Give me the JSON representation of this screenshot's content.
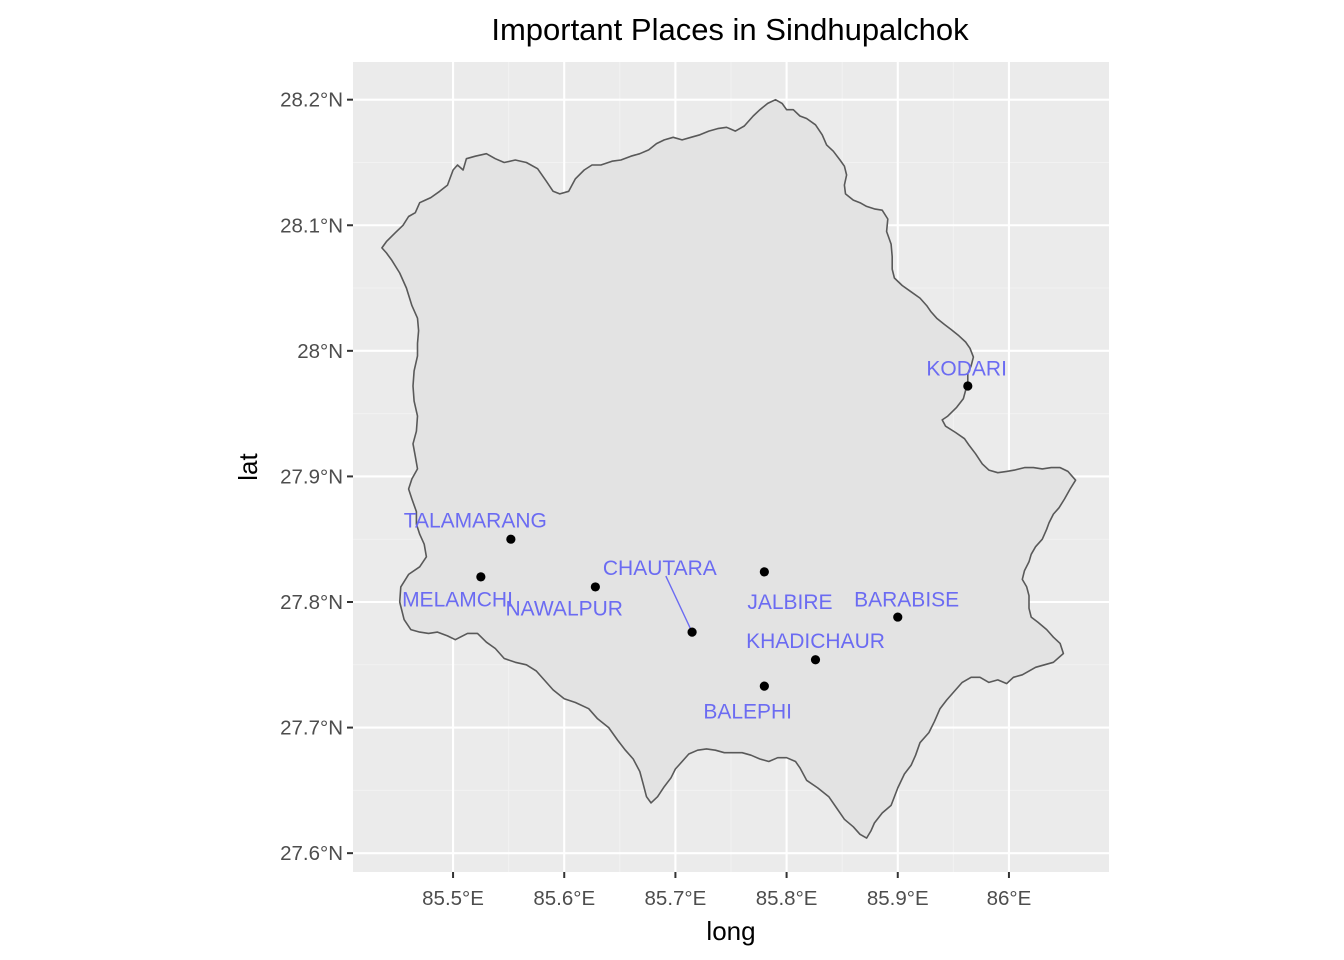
{
  "chart_data": {
    "type": "scatter",
    "title": "Important Places in Sindhupalchok",
    "xlabel": "long",
    "ylabel": "lat",
    "xlim": [
      85.41,
      86.09
    ],
    "ylim": [
      27.585,
      28.23
    ],
    "x_ticks": [
      {
        "value": 85.5,
        "label": "85.5°E"
      },
      {
        "value": 85.6,
        "label": "85.6°E"
      },
      {
        "value": 85.7,
        "label": "85.7°E"
      },
      {
        "value": 85.8,
        "label": "85.8°E"
      },
      {
        "value": 85.9,
        "label": "85.9°E"
      },
      {
        "value": 86.0,
        "label": "86°E"
      }
    ],
    "y_ticks": [
      {
        "value": 27.6,
        "label": "27.6°N"
      },
      {
        "value": 27.7,
        "label": "27.7°N"
      },
      {
        "value": 27.8,
        "label": "27.8°N"
      },
      {
        "value": 27.9,
        "label": "27.9°N"
      },
      {
        "value": 28.0,
        "label": "28°N"
      },
      {
        "value": 28.1,
        "label": "28.1°N"
      },
      {
        "value": 28.2,
        "label": "28.2°N"
      }
    ],
    "points": [
      {
        "name": "KODARI",
        "long": 85.963,
        "lat": 27.972,
        "label_long": 85.962,
        "label_lat": 27.986,
        "leader": false
      },
      {
        "name": "TALAMARANG",
        "long": 85.552,
        "lat": 27.85,
        "label_long": 85.52,
        "label_lat": 27.865,
        "leader": false
      },
      {
        "name": "MELAMCHI",
        "long": 85.525,
        "lat": 27.82,
        "label_long": 85.504,
        "label_lat": 27.802,
        "leader": false
      },
      {
        "name": "NAWALPUR",
        "long": 85.628,
        "lat": 27.812,
        "label_long": 85.6,
        "label_lat": 27.795,
        "leader": false
      },
      {
        "name": "CHAUTARA",
        "long": 85.715,
        "lat": 27.776,
        "label_long": 85.686,
        "label_lat": 27.827,
        "leader": true
      },
      {
        "name": "JALBIRE",
        "long": 85.78,
        "lat": 27.824,
        "label_long": 85.803,
        "label_lat": 27.8,
        "leader": false
      },
      {
        "name": "BARABISE",
        "long": 85.9,
        "lat": 27.788,
        "label_long": 85.908,
        "label_lat": 27.802,
        "leader": false
      },
      {
        "name": "KHADICHAUR",
        "long": 85.826,
        "lat": 27.754,
        "label_long": 85.826,
        "label_lat": 27.769,
        "leader": false
      },
      {
        "name": "BALEPHI",
        "long": 85.78,
        "lat": 27.733,
        "label_long": 85.765,
        "label_lat": 27.713,
        "leader": false
      }
    ],
    "boundary": [
      [
        85.44,
        28.087
      ],
      [
        85.448,
        28.094
      ],
      [
        85.455,
        28.1
      ],
      [
        85.46,
        28.107
      ],
      [
        85.466,
        28.11
      ],
      [
        85.47,
        28.118
      ],
      [
        85.475,
        28.12
      ],
      [
        85.48,
        28.122
      ],
      [
        85.488,
        28.127
      ],
      [
        85.495,
        28.132
      ],
      [
        85.5,
        28.144
      ],
      [
        85.504,
        28.148
      ],
      [
        85.509,
        28.144
      ],
      [
        85.512,
        28.153
      ],
      [
        85.52,
        28.155
      ],
      [
        85.53,
        28.157
      ],
      [
        85.538,
        28.153
      ],
      [
        85.546,
        28.15
      ],
      [
        85.556,
        28.152
      ],
      [
        85.566,
        28.15
      ],
      [
        85.576,
        28.145
      ],
      [
        85.584,
        28.135
      ],
      [
        85.59,
        28.127
      ],
      [
        85.596,
        28.125
      ],
      [
        85.604,
        28.127
      ],
      [
        85.61,
        28.137
      ],
      [
        85.618,
        28.144
      ],
      [
        85.625,
        28.148
      ],
      [
        85.633,
        28.148
      ],
      [
        85.643,
        28.151
      ],
      [
        85.651,
        28.152
      ],
      [
        85.66,
        28.155
      ],
      [
        85.668,
        28.157
      ],
      [
        85.676,
        28.16
      ],
      [
        85.683,
        28.165
      ],
      [
        85.69,
        28.168
      ],
      [
        85.698,
        28.17
      ],
      [
        85.706,
        28.168
      ],
      [
        85.714,
        28.17
      ],
      [
        85.722,
        28.172
      ],
      [
        85.73,
        28.175
      ],
      [
        85.738,
        28.177
      ],
      [
        85.746,
        28.178
      ],
      [
        85.754,
        28.175
      ],
      [
        85.762,
        28.179
      ],
      [
        85.77,
        28.187
      ],
      [
        85.776,
        28.192
      ],
      [
        85.783,
        28.197
      ],
      [
        85.79,
        28.2
      ],
      [
        85.796,
        28.197
      ],
      [
        85.8,
        28.192
      ],
      [
        85.806,
        28.192
      ],
      [
        85.812,
        28.187
      ],
      [
        85.818,
        28.185
      ],
      [
        85.826,
        28.18
      ],
      [
        85.832,
        28.172
      ],
      [
        85.836,
        28.164
      ],
      [
        85.842,
        28.159
      ],
      [
        85.848,
        28.152
      ],
      [
        85.852,
        28.147
      ],
      [
        85.854,
        28.14
      ],
      [
        85.852,
        28.132
      ],
      [
        85.853,
        28.125
      ],
      [
        85.86,
        28.12
      ],
      [
        85.866,
        28.118
      ],
      [
        85.872,
        28.115
      ],
      [
        85.879,
        28.113
      ],
      [
        85.886,
        28.112
      ],
      [
        85.891,
        28.105
      ],
      [
        85.89,
        28.095
      ],
      [
        85.894,
        28.085
      ],
      [
        85.895,
        28.075
      ],
      [
        85.895,
        28.065
      ],
      [
        85.897,
        28.058
      ],
      [
        85.904,
        28.052
      ],
      [
        85.912,
        28.047
      ],
      [
        85.92,
        28.042
      ],
      [
        85.926,
        28.036
      ],
      [
        85.93,
        28.031
      ],
      [
        85.935,
        28.026
      ],
      [
        85.942,
        28.021
      ],
      [
        85.948,
        28.017
      ],
      [
        85.955,
        28.012
      ],
      [
        85.961,
        28.007
      ],
      [
        85.965,
        28.002
      ],
      [
        85.968,
        27.995
      ],
      [
        85.966,
        27.988
      ],
      [
        85.963,
        27.982
      ],
      [
        85.963,
        27.975
      ],
      [
        85.959,
        27.962
      ],
      [
        85.953,
        27.955
      ],
      [
        85.945,
        27.948
      ],
      [
        85.94,
        27.945
      ],
      [
        85.943,
        27.94
      ],
      [
        85.952,
        27.935
      ],
      [
        85.96,
        27.93
      ],
      [
        85.964,
        27.925
      ],
      [
        85.97,
        27.918
      ],
      [
        85.976,
        27.91
      ],
      [
        85.982,
        27.905
      ],
      [
        85.99,
        27.903
      ],
      [
        85.998,
        27.904
      ],
      [
        86.005,
        27.905
      ],
      [
        86.014,
        27.907
      ],
      [
        86.022,
        27.907
      ],
      [
        86.03,
        27.906
      ],
      [
        86.038,
        27.907
      ],
      [
        86.046,
        27.907
      ],
      [
        86.053,
        27.904
      ],
      [
        86.06,
        27.897
      ],
      [
        86.055,
        27.89
      ],
      [
        86.05,
        27.882
      ],
      [
        86.045,
        27.875
      ],
      [
        86.04,
        27.87
      ],
      [
        86.036,
        27.863
      ],
      [
        86.034,
        27.858
      ],
      [
        86.03,
        27.85
      ],
      [
        86.024,
        27.844
      ],
      [
        86.02,
        27.838
      ],
      [
        86.018,
        27.832
      ],
      [
        86.014,
        27.825
      ],
      [
        86.012,
        27.818
      ],
      [
        86.016,
        27.812
      ],
      [
        86.018,
        27.805
      ],
      [
        86.018,
        27.795
      ],
      [
        86.02,
        27.788
      ],
      [
        86.026,
        27.784
      ],
      [
        86.034,
        27.778
      ],
      [
        86.04,
        27.772
      ],
      [
        86.046,
        27.767
      ],
      [
        86.049,
        27.759
      ],
      [
        86.04,
        27.752
      ],
      [
        86.032,
        27.75
      ],
      [
        86.024,
        27.748
      ],
      [
        86.018,
        27.745
      ],
      [
        86.012,
        27.742
      ],
      [
        86.004,
        27.74
      ],
      [
        85.998,
        27.735
      ],
      [
        85.99,
        27.738
      ],
      [
        85.982,
        27.736
      ],
      [
        85.974,
        27.74
      ],
      [
        85.966,
        27.74
      ],
      [
        85.958,
        27.736
      ],
      [
        85.95,
        27.728
      ],
      [
        85.944,
        27.722
      ],
      [
        85.938,
        27.715
      ],
      [
        85.933,
        27.705
      ],
      [
        85.928,
        27.696
      ],
      [
        85.92,
        27.688
      ],
      [
        85.916,
        27.678
      ],
      [
        85.912,
        27.67
      ],
      [
        85.906,
        27.663
      ],
      [
        85.9,
        27.652
      ],
      [
        85.894,
        27.638
      ],
      [
        85.886,
        27.632
      ],
      [
        85.879,
        27.624
      ],
      [
        85.876,
        27.618
      ],
      [
        85.872,
        27.612
      ],
      [
        85.866,
        27.615
      ],
      [
        85.86,
        27.621
      ],
      [
        85.852,
        27.627
      ],
      [
        85.845,
        27.636
      ],
      [
        85.838,
        27.645
      ],
      [
        85.828,
        27.652
      ],
      [
        85.818,
        27.658
      ],
      [
        85.812,
        27.668
      ],
      [
        85.808,
        27.673
      ],
      [
        85.8,
        27.676
      ],
      [
        85.792,
        27.676
      ],
      [
        85.784,
        27.673
      ],
      [
        85.776,
        27.675
      ],
      [
        85.768,
        27.678
      ],
      [
        85.76,
        27.68
      ],
      [
        85.752,
        27.68
      ],
      [
        85.744,
        27.68
      ],
      [
        85.736,
        27.682
      ],
      [
        85.728,
        27.683
      ],
      [
        85.72,
        27.682
      ],
      [
        85.712,
        27.679
      ],
      [
        85.704,
        27.671
      ],
      [
        85.7,
        27.667
      ],
      [
        85.696,
        27.66
      ],
      [
        85.69,
        27.653
      ],
      [
        85.684,
        27.645
      ],
      [
        85.678,
        27.64
      ],
      [
        85.674,
        27.645
      ],
      [
        85.671,
        27.655
      ],
      [
        85.668,
        27.665
      ],
      [
        85.662,
        27.675
      ],
      [
        85.655,
        27.682
      ],
      [
        85.648,
        27.69
      ],
      [
        85.64,
        27.7
      ],
      [
        85.63,
        27.707
      ],
      [
        85.622,
        27.715
      ],
      [
        85.61,
        27.72
      ],
      [
        85.6,
        27.723
      ],
      [
        85.59,
        27.73
      ],
      [
        85.583,
        27.737
      ],
      [
        85.575,
        27.745
      ],
      [
        85.566,
        27.75
      ],
      [
        85.556,
        27.752
      ],
      [
        85.546,
        27.755
      ],
      [
        85.538,
        27.763
      ],
      [
        85.53,
        27.768
      ],
      [
        85.522,
        27.775
      ],
      [
        85.513,
        27.775
      ],
      [
        85.502,
        27.77
      ],
      [
        85.495,
        27.773
      ],
      [
        85.486,
        27.776
      ],
      [
        85.478,
        27.775
      ],
      [
        85.47,
        27.776
      ],
      [
        85.462,
        27.778
      ],
      [
        85.456,
        27.786
      ],
      [
        85.452,
        27.8
      ],
      [
        85.453,
        27.812
      ],
      [
        85.46,
        27.822
      ],
      [
        85.47,
        27.828
      ],
      [
        85.476,
        27.836
      ],
      [
        85.474,
        27.846
      ],
      [
        85.47,
        27.854
      ],
      [
        85.467,
        27.862
      ],
      [
        85.467,
        27.872
      ],
      [
        85.463,
        27.882
      ],
      [
        85.46,
        27.89
      ],
      [
        85.463,
        27.898
      ],
      [
        85.468,
        27.906
      ],
      [
        85.466,
        27.916
      ],
      [
        85.464,
        27.926
      ],
      [
        85.467,
        27.936
      ],
      [
        85.468,
        27.948
      ],
      [
        85.465,
        27.96
      ],
      [
        85.464,
        27.972
      ],
      [
        85.465,
        27.984
      ],
      [
        85.468,
        27.996
      ],
      [
        85.468,
        28.006
      ],
      [
        85.469,
        28.016
      ],
      [
        85.468,
        28.026
      ],
      [
        85.463,
        28.036
      ],
      [
        85.458,
        28.05
      ],
      [
        85.452,
        28.062
      ],
      [
        85.445,
        28.072
      ],
      [
        85.44,
        28.078
      ],
      [
        85.436,
        28.082
      ],
      [
        85.44,
        28.087
      ]
    ]
  },
  "colors": {
    "panel_bg": "#ebebeb",
    "region_fill": "#e3e3e3",
    "region_stroke": "#595959",
    "point": "#000000",
    "label": "#6b6bf2"
  }
}
